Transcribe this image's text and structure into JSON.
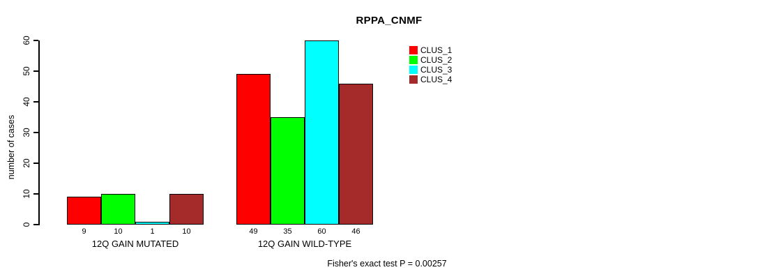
{
  "title": "RPPA_CNMF",
  "footer": "Fisher's exact test P = 0.00257",
  "chart_data": {
    "type": "bar",
    "title": "RPPA_CNMF",
    "xlabel": "",
    "ylabel": "number of cases",
    "ylim": [
      0,
      60
    ],
    "yticks": [
      0,
      10,
      20,
      30,
      40,
      50,
      60
    ],
    "grid": false,
    "legend_position": "top-right",
    "categories": [
      "12Q GAIN MUTATED",
      "12Q GAIN WILD-TYPE"
    ],
    "series": [
      {
        "name": "CLUS_1",
        "color": "#FF0000",
        "values": [
          9,
          49
        ]
      },
      {
        "name": "CLUS_2",
        "color": "#00FF00",
        "values": [
          10,
          35
        ]
      },
      {
        "name": "CLUS_3",
        "color": "#00FFFF",
        "values": [
          1,
          60
        ]
      },
      {
        "name": "CLUS_4",
        "color": "#A52A2A",
        "values": [
          10,
          46
        ]
      }
    ],
    "bar_value_labels": [
      [
        9,
        10,
        1,
        10
      ],
      [
        49,
        35,
        60,
        46
      ]
    ],
    "annotation": "Fisher's exact test P = 0.00257"
  }
}
